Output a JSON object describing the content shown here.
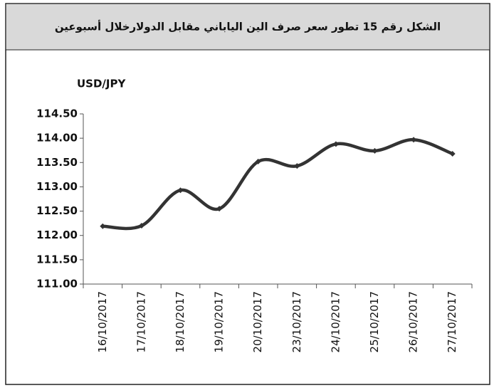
{
  "chart_data": {
    "type": "line",
    "title": "الشكل رقم 15 تطور سعر صرف الين الياباني مقابل الدولارخلال أسبوعين",
    "y_label": "USD/JPY",
    "categories": [
      "16/10/2017",
      "17/10/2017",
      "18/10/2017",
      "19/10/2017",
      "20/10/2017",
      "23/10/2017",
      "24/10/2017",
      "25/10/2017",
      "26/10/2017",
      "27/10/2017"
    ],
    "series": [
      {
        "name": "USD/JPY",
        "color": "#333333",
        "values": [
          112.19,
          112.2,
          112.93,
          112.55,
          113.52,
          113.43,
          113.88,
          113.74,
          113.97,
          113.68
        ]
      }
    ],
    "ylim": [
      111,
      114.5
    ],
    "yticks": [
      {
        "value": 111,
        "label": "111.00"
      },
      {
        "value": 111.5,
        "label": "111.50"
      },
      {
        "value": 112,
        "label": "112.00"
      },
      {
        "value": 112.5,
        "label": "112.50"
      },
      {
        "value": 113,
        "label": "113.00"
      },
      {
        "value": 113.5,
        "label": "113.50"
      },
      {
        "value": 114,
        "label": "114.00"
      },
      {
        "value": 114.5,
        "label": "114.50"
      }
    ],
    "grid": false
  }
}
